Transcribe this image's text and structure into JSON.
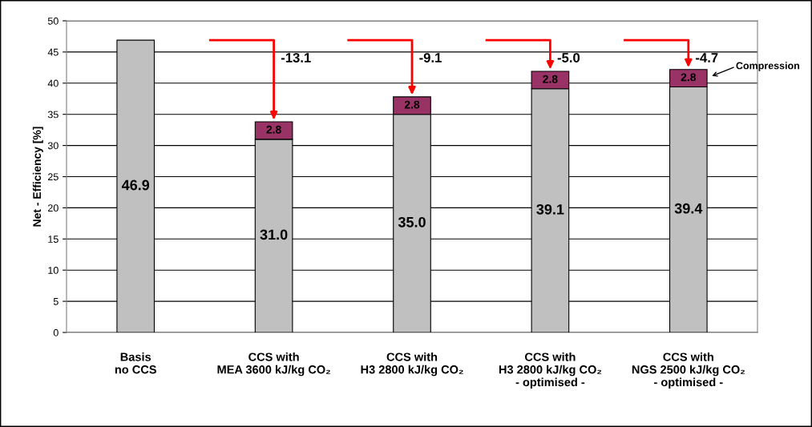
{
  "chart_data": {
    "type": "bar",
    "stacked": true,
    "ylabel": "Net - Efficiency [%]",
    "categories": [
      "Basis\nno CCS",
      "CCS with\nMEA 3600 kJ/kg CO₂",
      "CCS with\nH3 2800 kJ/kg CO₂",
      "CCS with\nH3 2800 kJ/kg CO₂\n- optimised -",
      "CCS with\nNGS 2500 kJ/kg CO₂\n- optimised -"
    ],
    "series": [
      {
        "color": "#c0c0c0",
        "values": [
          46.9,
          31.0,
          35.0,
          39.1,
          39.4
        ],
        "value_labels": [
          "46.9",
          "31.0",
          "35.0",
          "39.1",
          "39.4"
        ]
      },
      {
        "color": "#993366",
        "values": [
          null,
          2.8,
          2.8,
          2.8,
          2.8
        ],
        "value_labels": [
          null,
          "2.8",
          "2.8",
          "2.8",
          "2.8"
        ]
      }
    ],
    "ylim": [
      0,
      50
    ],
    "yticks": [
      0,
      5,
      10,
      15,
      20,
      25,
      30,
      35,
      40,
      45,
      50
    ],
    "grid": "y",
    "annotations": [
      {
        "text": "-13.1",
        "x": "CCS with\nMEA 3600 kJ/kg CO₂",
        "y": 33.8
      },
      {
        "text": "-9.1",
        "x": "CCS with\nH3 2800 kJ/kg CO₂",
        "y": 37.8
      },
      {
        "text": "-5.0",
        "x": "CCS with\nH3 2800 kJ/kg CO₂\n- optimised -",
        "y": 41.9
      },
      {
        "text": "-4.7",
        "x": "CCS with\nNGS 2500 kJ/kg CO₂\n- optimised -",
        "y": 42.2
      },
      "Compression"
    ]
  }
}
